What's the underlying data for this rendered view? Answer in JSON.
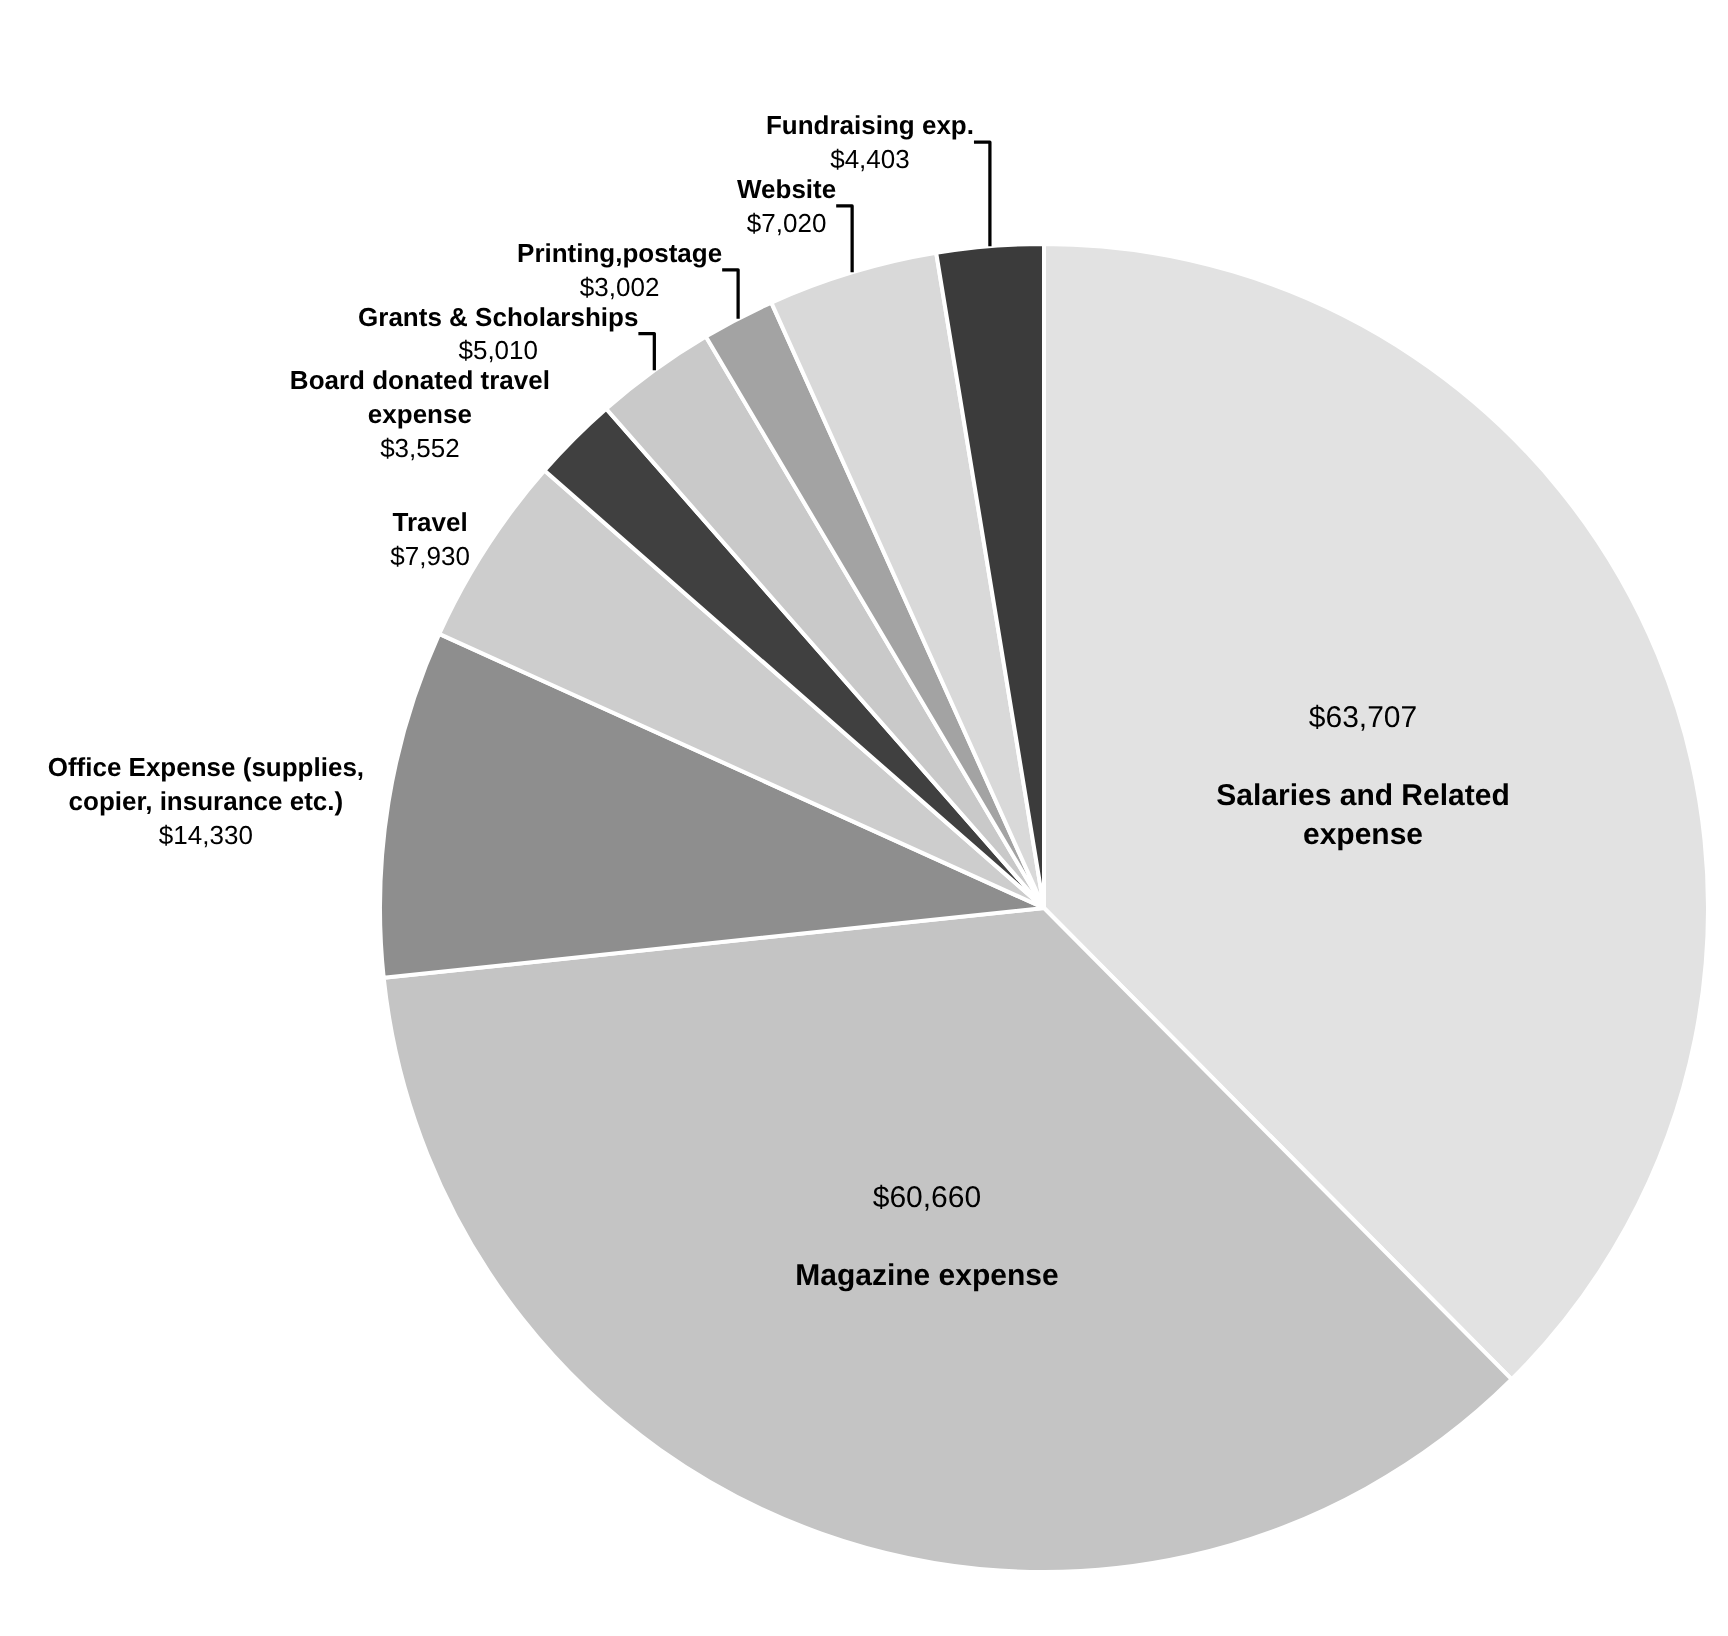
{
  "chart_data": {
    "type": "pie",
    "categories": [
      "Salaries and Related expense",
      "Magazine expense",
      "Office Expense (supplies, copier, insurance etc.)",
      "Travel",
      "Board donated travel expense",
      "Grants & Scholarships",
      "Printing,postage",
      "Website",
      "Fundraising exp."
    ],
    "values": [
      63707,
      60660,
      14330,
      7930,
      3552,
      5010,
      3002,
      7020,
      4403
    ],
    "value_labels": [
      "$63,707",
      "$60,660",
      "$14,330",
      "$7,930",
      "$3,552",
      "$5,010",
      "$3,002",
      "$7,020",
      "$4,403"
    ],
    "colors": [
      "#e2e2e2",
      "#c4c4c4",
      "#8e8e8e",
      "#cdcdcd",
      "#404040",
      "#c9c9c9",
      "#a3a3a3",
      "#d9d9d9",
      "#3b3b3b"
    ],
    "legend": false
  }
}
